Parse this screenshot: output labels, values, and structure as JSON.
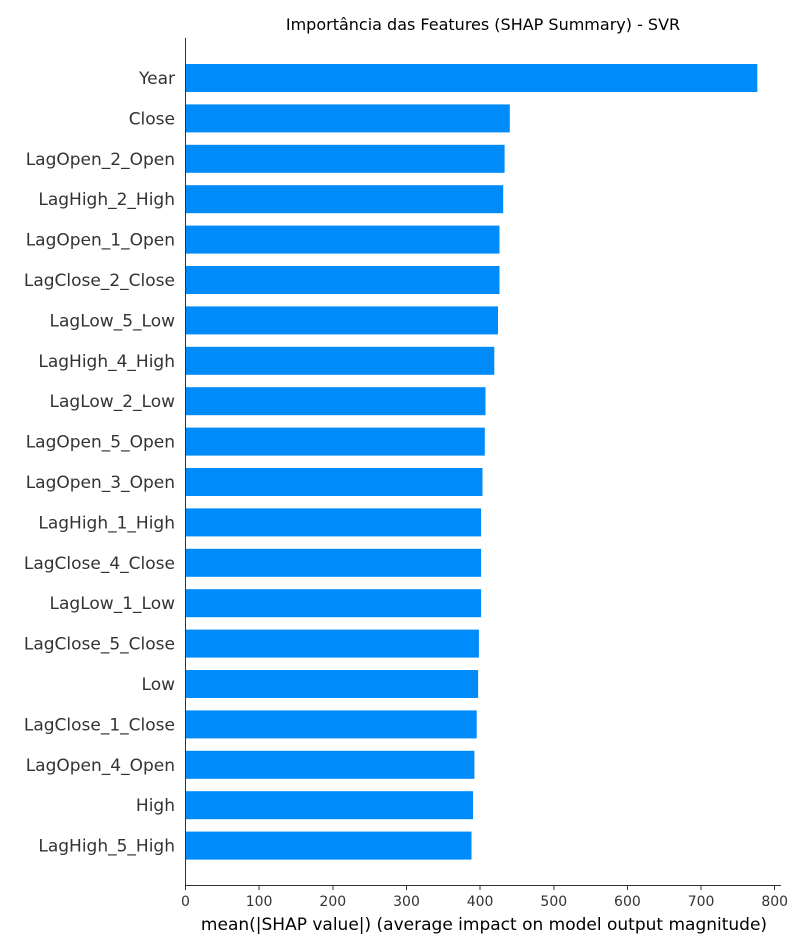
{
  "chart_data": {
    "type": "bar",
    "orientation": "horizontal",
    "title": "Importância das Features (SHAP Summary) - SVR",
    "xlabel": "mean(|SHAP value|) (average impact on model output magnitude)",
    "ylabel": "",
    "xlim": [
      0,
      815
    ],
    "xticks": [
      0,
      100,
      200,
      300,
      400,
      500,
      600,
      700,
      800
    ],
    "bar_color": "#008bfb",
    "grid": false,
    "legend": "none",
    "categories": [
      "Year",
      "Close",
      "LagOpen_2_Open",
      "LagHigh_2_High",
      "LagOpen_1_Open",
      "LagClose_2_Close",
      "LagLow_5_Low",
      "LagHigh_4_High",
      "LagLow_2_Low",
      "LagOpen_5_Open",
      "LagOpen_3_Open",
      "LagHigh_1_High",
      "LagClose_4_Close",
      "LagLow_1_Low",
      "LagClose_5_Close",
      "Low",
      "LagClose_1_Close",
      "LagOpen_4_Open",
      "High",
      "LagHigh_5_High"
    ],
    "values": [
      777,
      441,
      434,
      432,
      427,
      427,
      425,
      420,
      408,
      407,
      404,
      402,
      402,
      402,
      399,
      398,
      396,
      393,
      391,
      389
    ]
  }
}
